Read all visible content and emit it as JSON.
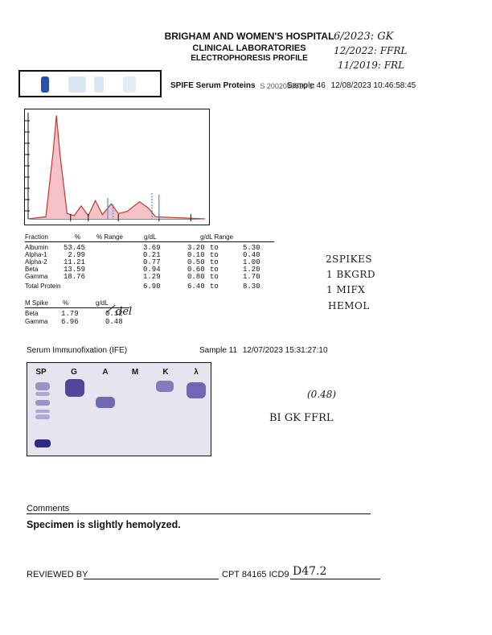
{
  "header": {
    "hospital": "BRIGHAM AND WOMEN'S HOSPITAL",
    "lab": "CLINICAL LABORATORIES",
    "profile": "ELECTROPHORESIS PROFILE"
  },
  "handwritten_top": {
    "line1": "6/2023: GK",
    "line2": "12/2022: FFRL",
    "line3": "11/2019: FRL"
  },
  "spife": {
    "label": "SPIFE Serum Proteins",
    "id_fragment": "S 2002050520 13",
    "sample": "Sample 46",
    "datetime": "12/08/2023  10:46:58:45"
  },
  "densitogram": {
    "series": [
      {
        "x": 0,
        "y": 0
      },
      {
        "x": 10,
        "y": 2
      },
      {
        "x": 14,
        "y": 60
      },
      {
        "x": 16,
        "y": 96
      },
      {
        "x": 18,
        "y": 60
      },
      {
        "x": 22,
        "y": 5
      },
      {
        "x": 26,
        "y": 3
      },
      {
        "x": 30,
        "y": 12
      },
      {
        "x": 34,
        "y": 3
      },
      {
        "x": 38,
        "y": 17
      },
      {
        "x": 42,
        "y": 4
      },
      {
        "x": 47,
        "y": 14
      },
      {
        "x": 51,
        "y": 5
      },
      {
        "x": 56,
        "y": 7
      },
      {
        "x": 63,
        "y": 16
      },
      {
        "x": 68,
        "y": 10
      },
      {
        "x": 72,
        "y": 2
      },
      {
        "x": 100,
        "y": 0
      }
    ],
    "fill_color": "#f4c2c8",
    "line_color": "#c0392b",
    "marker_color": "#4a90d9"
  },
  "fraction_table": {
    "headers": [
      "Fraction",
      "%",
      "% Range",
      "g/dL",
      "g/dL Range"
    ],
    "rows": [
      {
        "name": "Albumin",
        "pct": "53.45",
        "gdl": "3.69",
        "lo": "3.20",
        "to": "to",
        "hi": "5.30"
      },
      {
        "name": "Alpha-1",
        "pct": "2.99",
        "gdl": "0.21",
        "lo": "0.10",
        "to": "to",
        "hi": "0.40"
      },
      {
        "name": "Alpha-2",
        "pct": "11.21",
        "gdl": "0.77",
        "lo": "0.50",
        "to": "to",
        "hi": "1.00"
      },
      {
        "name": "Beta",
        "pct": "13.59",
        "gdl": "0.94",
        "lo": "0.60",
        "to": "to",
        "hi": "1.20"
      },
      {
        "name": "Gamma",
        "pct": "18.76",
        "gdl": "1.29",
        "lo": "0.80",
        "to": "to",
        "hi": "1.70"
      }
    ],
    "total": {
      "name": "Total Protein",
      "gdl": "6.90",
      "lo": "6.40",
      "to": "to",
      "hi": "8.30"
    }
  },
  "mspike": {
    "headers": [
      "M Spike",
      "%",
      "g/dL"
    ],
    "rows": [
      {
        "name": "Beta",
        "pct": "1.79",
        "gdl": "0.12"
      },
      {
        "name": "Gamma",
        "pct": "6.96",
        "gdl": "0.48"
      }
    ],
    "annotation": "del"
  },
  "handwritten_side": {
    "l1": "2SPIKES",
    "l2": "1 BKGRD",
    "l3": "1 MIFX",
    "l4": "HEMOL"
  },
  "ife": {
    "label": "Serum Immunofixation (IFE)",
    "sample": "Sample 11",
    "datetime": "12/07/2023  15:31:27:10",
    "lanes": [
      "SP",
      "G",
      "A",
      "M",
      "K",
      "λ"
    ]
  },
  "handwritten_ife": {
    "value": "(0.48)",
    "note": "BI GK FFRL"
  },
  "comments": {
    "title": "Comments",
    "text": "Specimen is slightly hemolyzed."
  },
  "footer": {
    "reviewed_by": "REVIEWED BY",
    "cpt": "CPT 84165 ICD9",
    "icd_code": "D47.2"
  }
}
